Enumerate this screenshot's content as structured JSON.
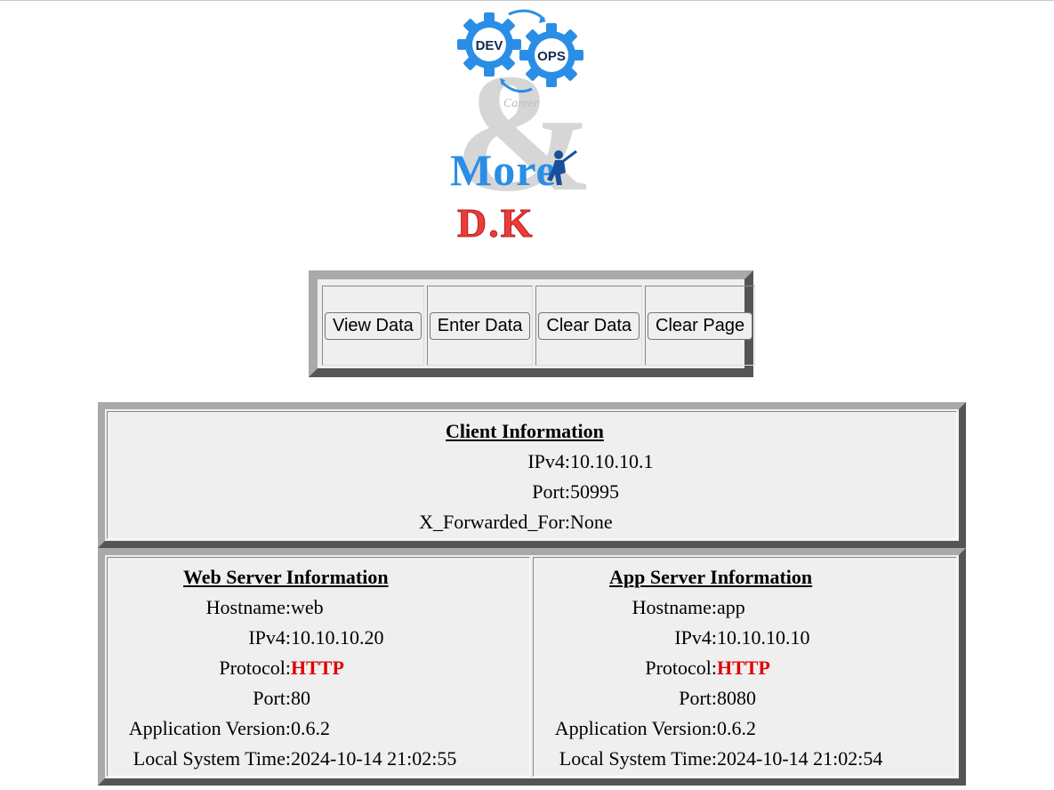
{
  "logo": {
    "dev_text": "DEV",
    "ops_text": "OPS",
    "more_text": "More",
    "dk_text": "D.K",
    "watermark_text": "Career",
    "colors": {
      "gear": "#2a8ee6",
      "dk": "#ef3a3a",
      "watermark": "#bdbdbd"
    }
  },
  "buttons": {
    "view": "View Data",
    "enter": "Enter Data",
    "clear_data": "Clear Data",
    "clear_page": "Clear Page"
  },
  "client": {
    "heading": "Client Information",
    "ipv4_label": "IPv4:",
    "ipv4": "10.10.10.1",
    "port_label": "Port:",
    "port": "50995",
    "xff_label": "X_Forwarded_For:",
    "xff": "None"
  },
  "web": {
    "heading": "Web Server Information",
    "hostname_label": "Hostname:",
    "hostname": "web",
    "ipv4_label": "IPv4:",
    "ipv4": "10.10.10.20",
    "protocol_label": "Protocol:",
    "protocol": "HTTP",
    "port_label": "Port:",
    "port": "80",
    "version_label": "Application Version:",
    "version": "0.6.2",
    "time_label": "Local System Time:",
    "time": "2024-10-14 21:02:55"
  },
  "app": {
    "heading": "App Server Information",
    "hostname_label": "Hostname:",
    "hostname": "app",
    "ipv4_label": "IPv4:",
    "ipv4": "10.10.10.10",
    "protocol_label": "Protocol:",
    "protocol": "HTTP",
    "port_label": "Port:",
    "port": "8080",
    "version_label": "Application Version:",
    "version": "0.6.2",
    "time_label": "Local System Time:",
    "time": "2024-10-14 21:02:54"
  },
  "colors": {
    "protocol": "#e00000",
    "panel_bg": "#efefef",
    "frame_light": "#a9a9a9",
    "frame_dark": "#555555"
  }
}
